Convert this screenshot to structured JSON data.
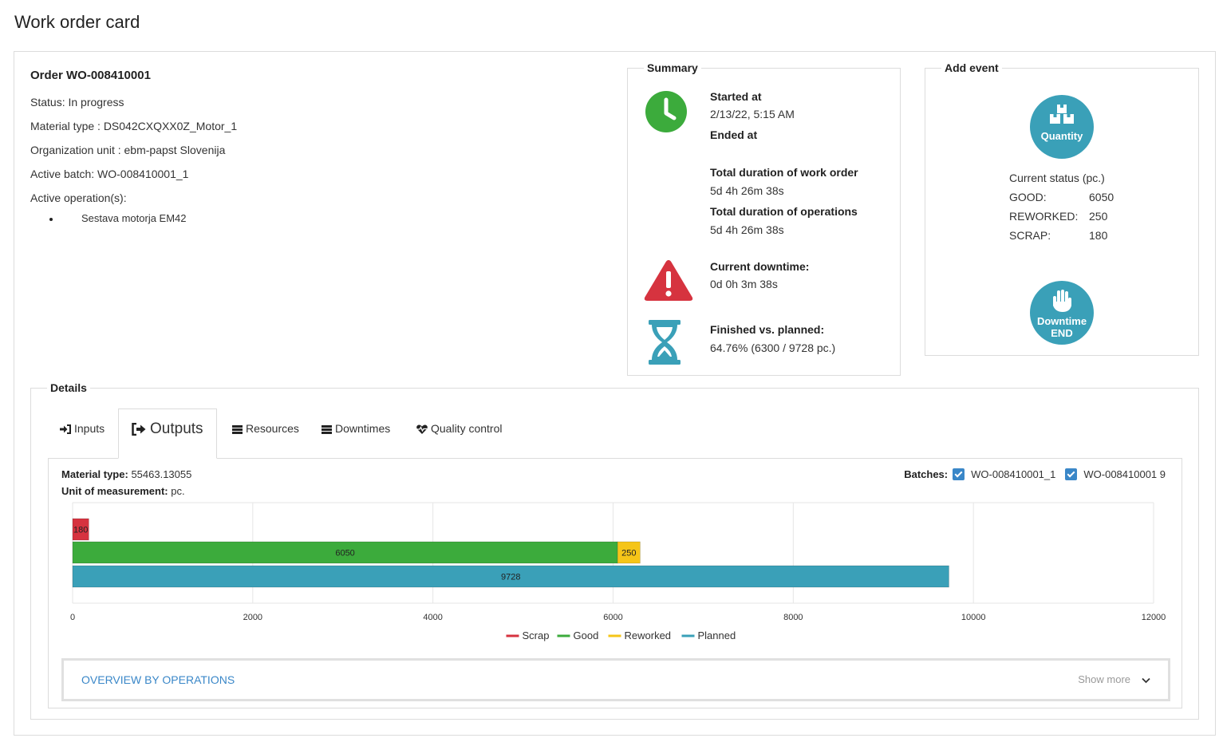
{
  "page": {
    "title": "Work order card"
  },
  "order": {
    "title": "Order WO-008410001",
    "status": "Status: In progress",
    "material_type": "Material type : DS042CXQXX0Z_Motor_1",
    "organization_unit": "Organization unit : ebm-papst Slovenija",
    "active_batch": "Active batch: WO-008410001_1",
    "active_operations_label": "Active operation(s):",
    "active_operations": [
      "Sestava motorja EM42"
    ]
  },
  "summary": {
    "legend": "Summary",
    "started_label": "Started at",
    "started_value": "2/13/22, 5:15 AM",
    "ended_label": "Ended at",
    "total_wo_label": "Total duration of work order",
    "total_wo_value": "5d 4h 26m 38s",
    "total_ops_label": "Total duration of operations",
    "total_ops_value": "5d 4h 26m 38s",
    "downtime_label": "Current downtime:",
    "downtime_value": "0d 0h 3m 38s",
    "finished_label": "Finished vs. planned:",
    "finished_value": "64.76% (6300 / 9728 pc.)",
    "icons": {
      "clock": "clock-icon",
      "warning": "warning-icon",
      "hourglass": "hourglass-icon"
    },
    "colors": {
      "clock": "#3cab3c",
      "warning": "#d6333f",
      "hourglass": "#3aa0b8"
    }
  },
  "add_event": {
    "legend": "Add event",
    "quantity_button": "Quantity",
    "downtime_button_line1": "Downtime",
    "downtime_button_line2": "END",
    "current_status_label": "Current status (pc.)",
    "good_label": "GOOD:",
    "good_value": "6050",
    "reworked_label": "REWORKED:",
    "reworked_value": "250",
    "scrap_label": "SCRAP:",
    "scrap_value": "180",
    "button_color": "#3aa0b8"
  },
  "details": {
    "legend": "Details",
    "tabs": [
      {
        "label": "Inputs",
        "icon": "sign-in-icon"
      },
      {
        "label": "Outputs",
        "icon": "sign-out-icon",
        "active": true
      },
      {
        "label": "Resources",
        "icon": "list-icon"
      },
      {
        "label": "Downtimes",
        "icon": "list-icon"
      },
      {
        "label": "Quality control",
        "icon": "heartbeat-icon"
      }
    ],
    "material_type_label": "Material type:",
    "material_type_value": "55463.13055",
    "uom_label": "Unit of measurement:",
    "uom_value": "pc.",
    "batches_label": "Batches:",
    "batches": [
      "WO-008410001_1",
      "WO-008410001 9"
    ],
    "overview_title": "OVERVIEW BY OPERATIONS",
    "show_more": "Show more"
  },
  "chart_data": {
    "type": "bar",
    "orientation": "horizontal",
    "stacked": true,
    "xlim": [
      0,
      12000
    ],
    "xticks": [
      0,
      2000,
      4000,
      6000,
      8000,
      10000,
      12000
    ],
    "grid": true,
    "legend_position": "bottom",
    "rows": [
      {
        "segments": [
          {
            "series": "Scrap",
            "value": 180
          }
        ]
      },
      {
        "segments": [
          {
            "series": "Good",
            "value": 6050
          },
          {
            "series": "Reworked",
            "value": 250
          }
        ]
      },
      {
        "segments": [
          {
            "series": "Planned",
            "value": 9728
          }
        ]
      }
    ],
    "series": [
      {
        "name": "Scrap",
        "color": "#d6333f"
      },
      {
        "name": "Good",
        "color": "#3cab3c"
      },
      {
        "name": "Reworked",
        "color": "#f5c518"
      },
      {
        "name": "Planned",
        "color": "#3aa0b8"
      }
    ]
  }
}
